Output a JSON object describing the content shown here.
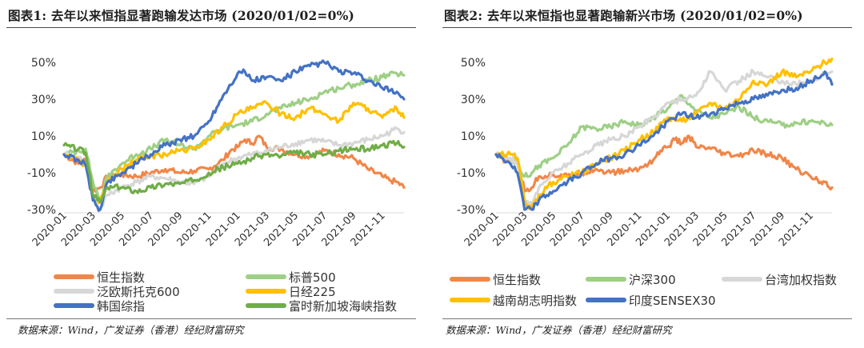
{
  "source_text": "数据来源：Wind，广发证券（香港）经纪财富研究",
  "chart_data": [
    {
      "type": "line",
      "title": "图表1:  去年以来恒指显著跑输发达市场 (2020/01/02=0%)",
      "xlabel": "",
      "ylabel": "",
      "x_ticks": [
        "2020-01",
        "2020-03",
        "2020-05",
        "2020-07",
        "2020-09",
        "2020-11",
        "2021-01",
        "2021-03",
        "2021-05",
        "2021-07",
        "2021-09",
        "2021-11"
      ],
      "y_ticks": [
        "50%",
        "30%",
        "10%",
        "-10%",
        "-30%"
      ],
      "ylim": [
        -30,
        50
      ],
      "xlim_months": [
        0,
        23.5
      ],
      "legend_position": "bottom",
      "series": [
        {
          "name": "恒生指数",
          "color": "#f0874a",
          "x": [
            0,
            1,
            1.5,
            2,
            2.5,
            3,
            4,
            5,
            6,
            7,
            8,
            9,
            10,
            11,
            11.5,
            12,
            12.5,
            13,
            13.5,
            14,
            15,
            16,
            17,
            18,
            19,
            20,
            21,
            22,
            22.5,
            23,
            23.5
          ],
          "values": [
            0,
            -5,
            -3,
            -20,
            -18,
            -12,
            -11,
            -12,
            -10,
            -8,
            -10,
            -9,
            -8,
            -3,
            2,
            4,
            8,
            6,
            10,
            4,
            3,
            0,
            -1,
            2,
            0,
            -2,
            -8,
            -12,
            -14,
            -15,
            -18
          ]
        },
        {
          "name": "标普500",
          "color": "#9ecf86",
          "x": [
            0,
            1,
            1.5,
            2,
            2.5,
            3,
            4,
            5,
            6,
            7,
            8,
            9,
            10,
            11,
            12,
            13,
            14,
            15,
            16,
            17,
            18,
            19,
            20,
            21,
            22,
            23,
            23.5
          ],
          "values": [
            0,
            2,
            3,
            -15,
            -25,
            -12,
            -5,
            0,
            3,
            8,
            5,
            3,
            10,
            14,
            16,
            18,
            22,
            25,
            28,
            30,
            34,
            36,
            38,
            40,
            42,
            44,
            43
          ]
        },
        {
          "name": "泛欧斯托克600",
          "color": "#d7d7d7",
          "x": [
            0,
            1,
            1.5,
            2,
            2.5,
            3,
            4,
            5,
            6,
            7,
            8,
            9,
            10,
            11,
            12,
            13,
            14,
            15,
            16,
            17,
            18,
            19,
            20,
            21,
            22,
            23,
            23.5
          ],
          "values": [
            0,
            -2,
            -5,
            -25,
            -30,
            -22,
            -18,
            -15,
            -12,
            -13,
            -15,
            -16,
            -12,
            -5,
            -2,
            0,
            2,
            4,
            6,
            8,
            7,
            5,
            6,
            8,
            10,
            14,
            12
          ]
        },
        {
          "name": "日经225",
          "color": "#ffc000",
          "x": [
            0,
            1,
            1.5,
            2,
            2.5,
            3,
            4,
            5,
            6,
            7,
            8,
            9,
            10,
            11,
            12,
            13,
            14,
            15,
            16,
            17,
            18,
            19,
            20,
            21,
            22,
            23,
            23.5
          ],
          "values": [
            0,
            -3,
            -6,
            -22,
            -26,
            -15,
            -8,
            -3,
            -1,
            0,
            2,
            3,
            8,
            15,
            22,
            25,
            28,
            22,
            20,
            25,
            22,
            18,
            28,
            25,
            20,
            25,
            20
          ]
        },
        {
          "name": "韩国综指",
          "color": "#4472c4",
          "x": [
            0,
            1,
            1.5,
            2,
            2.5,
            3,
            4,
            5,
            6,
            7,
            8,
            9,
            10,
            11,
            12,
            12.5,
            13,
            14,
            15,
            16,
            17,
            18,
            19,
            20,
            21,
            22,
            23,
            23.5
          ],
          "values": [
            0,
            -3,
            -6,
            -25,
            -30,
            -15,
            -10,
            -5,
            0,
            5,
            8,
            10,
            18,
            32,
            44,
            45,
            40,
            42,
            40,
            45,
            48,
            50,
            45,
            44,
            40,
            36,
            34,
            30
          ]
        },
        {
          "name": "富时新加坡海峡指数",
          "color": "#70ad47",
          "x": [
            0,
            1,
            1.5,
            2,
            2.5,
            3,
            4,
            5,
            6,
            7,
            8,
            9,
            10,
            11,
            12,
            13,
            14,
            15,
            16,
            17,
            18,
            19,
            20,
            21,
            22,
            23,
            23.5
          ],
          "values": [
            5,
            3,
            1,
            -22,
            -26,
            -18,
            -18,
            -20,
            -18,
            -16,
            -16,
            -14,
            -10,
            -7,
            -5,
            -2,
            0,
            -1,
            1,
            0,
            0,
            2,
            3,
            3,
            5,
            6,
            4
          ]
        }
      ],
      "legend": [
        {
          "name": "恒生指数",
          "color": "#f0874a"
        },
        {
          "name": "标普500",
          "color": "#9ecf86"
        },
        {
          "name": "泛欧斯托克600",
          "color": "#d7d7d7"
        },
        {
          "name": "日经225",
          "color": "#ffc000"
        },
        {
          "name": "韩国综指",
          "color": "#4472c4"
        },
        {
          "name": "富时新加坡海峡指数",
          "color": "#70ad47"
        }
      ]
    },
    {
      "type": "line",
      "title": "图表2:  去年以来恒指也显著跑输新兴市场 (2020/01/02=0%)",
      "xlabel": "",
      "ylabel": "",
      "x_ticks": [
        "2020-01",
        "2020-03",
        "2020-05",
        "2020-07",
        "2020-09",
        "2020-11",
        "2021-01",
        "2021-03",
        "2021-05",
        "2021-07",
        "2021-09",
        "2021-11"
      ],
      "y_ticks": [
        "50%",
        "30%",
        "10%",
        "-10%",
        "-30%"
      ],
      "ylim": [
        -30,
        50
      ],
      "xlim_months": [
        0,
        23.5
      ],
      "legend_position": "bottom",
      "series": [
        {
          "name": "恒生指数",
          "color": "#f0874a",
          "x": [
            0,
            1,
            1.5,
            2,
            2.5,
            3,
            4,
            5,
            6,
            7,
            8,
            9,
            10,
            11,
            11.5,
            12,
            12.5,
            13,
            13.5,
            14,
            15,
            16,
            17,
            18,
            19,
            20,
            21,
            22,
            22.5,
            23,
            23.5
          ],
          "values": [
            0,
            -5,
            -3,
            -20,
            -18,
            -12,
            -11,
            -12,
            -10,
            -8,
            -10,
            -9,
            -8,
            -3,
            2,
            4,
            8,
            6,
            10,
            4,
            3,
            0,
            -1,
            2,
            0,
            -2,
            -8,
            -12,
            -14,
            -15,
            -18
          ]
        },
        {
          "name": "沪深300",
          "color": "#9ecf86",
          "x": [
            0,
            1,
            1.5,
            2,
            2.5,
            3,
            4,
            5,
            6,
            7,
            8,
            9,
            10,
            11,
            12,
            13,
            14,
            15,
            16,
            17,
            18,
            19,
            20,
            21,
            22,
            23,
            23.5
          ],
          "values": [
            0,
            -3,
            -5,
            -12,
            -10,
            -6,
            -2,
            5,
            15,
            14,
            15,
            18,
            16,
            20,
            25,
            32,
            24,
            20,
            22,
            26,
            20,
            18,
            16,
            17,
            18,
            17,
            16
          ]
        },
        {
          "name": "台湾加权指数",
          "color": "#d7d7d7",
          "x": [
            0,
            1,
            1.5,
            2,
            2.5,
            3,
            4,
            5,
            6,
            7,
            8,
            9,
            10,
            11,
            12,
            13,
            14,
            15,
            16,
            17,
            18,
            19,
            20,
            21,
            22,
            23,
            23.5
          ],
          "values": [
            0,
            -2,
            -5,
            -25,
            -28,
            -18,
            -10,
            -5,
            0,
            5,
            8,
            10,
            15,
            20,
            28,
            30,
            32,
            45,
            35,
            40,
            45,
            42,
            40,
            38,
            40,
            44,
            45
          ]
        },
        {
          "name": "越南胡志明指数",
          "color": "#ffc000",
          "x": [
            0,
            1,
            1.5,
            2,
            2.5,
            3,
            4,
            5,
            6,
            7,
            8,
            9,
            10,
            11,
            12,
            13,
            14,
            15,
            16,
            17,
            18,
            19,
            20,
            21,
            22,
            23,
            23.5
          ],
          "values": [
            0,
            0,
            -2,
            -25,
            -30,
            -22,
            -15,
            -12,
            -10,
            -5,
            -2,
            2,
            8,
            12,
            20,
            18,
            22,
            28,
            25,
            30,
            40,
            38,
            45,
            42,
            45,
            50,
            52
          ]
        },
        {
          "name": "印度SENSEX30",
          "color": "#4472c4",
          "x": [
            0,
            1,
            1.5,
            2,
            2.5,
            3,
            4,
            5,
            6,
            7,
            8,
            9,
            10,
            11,
            12,
            13,
            14,
            15,
            16,
            17,
            18,
            19,
            20,
            21,
            22,
            23,
            23.5
          ],
          "values": [
            0,
            -5,
            -10,
            -30,
            -30,
            -25,
            -20,
            -15,
            -10,
            -5,
            -2,
            0,
            5,
            10,
            18,
            22,
            20,
            22,
            25,
            28,
            30,
            32,
            35,
            36,
            40,
            45,
            38
          ]
        }
      ],
      "legend": [
        {
          "name": "恒生指数",
          "color": "#f0874a"
        },
        {
          "name": "沪深300",
          "color": "#9ecf86"
        },
        {
          "name": "台湾加权指数",
          "color": "#d7d7d7"
        },
        {
          "name": "越南胡志明指数",
          "color": "#ffc000"
        },
        {
          "name": "印度SENSEX30",
          "color": "#4472c4"
        }
      ]
    }
  ]
}
